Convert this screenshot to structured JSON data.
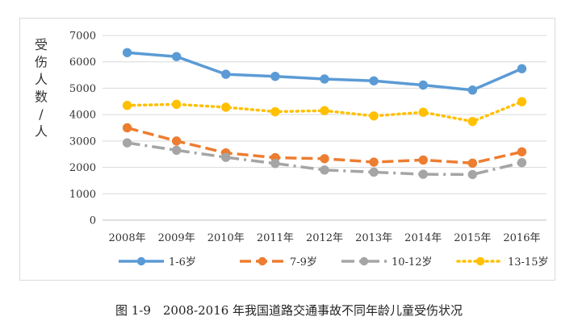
{
  "caption": "图 1-9　2008-2016 年我国道路交通事故不同年龄儿童受伤状况",
  "chart_data": {
    "type": "line",
    "title": "",
    "xlabel": "",
    "ylabel": "受伤人数/人",
    "categories": [
      "2008年",
      "2009年",
      "2010年",
      "2011年",
      "2012年",
      "2013年",
      "2014年",
      "2015年",
      "2016年"
    ],
    "ylim": [
      0,
      7000
    ],
    "yticks": [
      0,
      1000,
      2000,
      3000,
      4000,
      5000,
      6000,
      7000
    ],
    "grid": true,
    "legend_position": "bottom",
    "series": [
      {
        "name": "1-6岁",
        "color": "#5b9bd5",
        "style": "solid",
        "values": [
          6350,
          6200,
          5530,
          5450,
          5350,
          5280,
          5120,
          4930,
          5740
        ]
      },
      {
        "name": "7-9岁",
        "color": "#ed7d31",
        "style": "dash",
        "values": [
          3500,
          3000,
          2550,
          2370,
          2330,
          2200,
          2280,
          2160,
          2590
        ]
      },
      {
        "name": "10-12岁",
        "color": "#a5a5a5",
        "style": "dashdot",
        "values": [
          2930,
          2650,
          2380,
          2150,
          1900,
          1820,
          1740,
          1730,
          2180
        ]
      },
      {
        "name": "13-15岁",
        "color": "#ffc000",
        "style": "dot",
        "values": [
          4350,
          4390,
          4280,
          4110,
          4150,
          3950,
          4090,
          3740,
          4490
        ]
      }
    ]
  }
}
